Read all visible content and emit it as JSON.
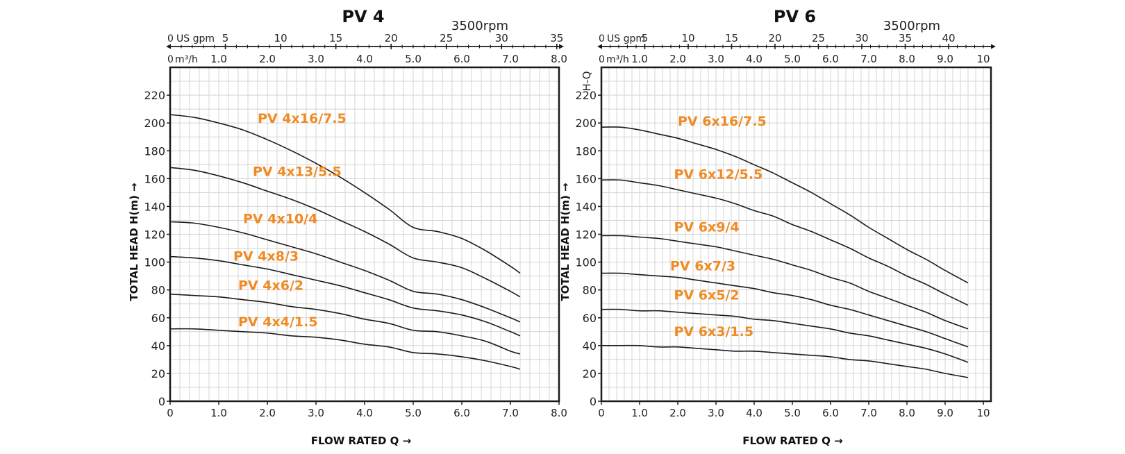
{
  "chart_data": [
    {
      "type": "line",
      "title": "PV 4",
      "speed_label": "3500rpm",
      "xlabel": "FLOW RATED Q →",
      "ylabel": "TOTAL HEAD H(m) →",
      "x_unit_label": "m³/h",
      "top_unit_label": "US gpm",
      "xlim": [
        0,
        8
      ],
      "ylim": [
        0,
        240
      ],
      "grid": true,
      "x_ticks": [
        0,
        1,
        2,
        3,
        4,
        5,
        6,
        7,
        8
      ],
      "x_tick_labels": [
        "0",
        "1.0",
        "2.0",
        "3.0",
        "4.0",
        "5.0",
        "6.0",
        "7.0",
        "8.0"
      ],
      "y_ticks": [
        0,
        20,
        40,
        60,
        80,
        100,
        120,
        140,
        160,
        180,
        200,
        220
      ],
      "y_tick_labels": [
        "0",
        "20",
        "40",
        "60",
        "80",
        "100",
        "120",
        "140",
        "160",
        "180",
        "200",
        "220"
      ],
      "gpm_ticks": [
        0,
        5,
        10,
        15,
        20,
        25,
        30,
        35
      ],
      "gpm_tick_labels": [
        "0",
        "5",
        "10",
        "15",
        "20",
        "25",
        "30",
        "35"
      ],
      "series": [
        {
          "name": "PV 4x16/7.5",
          "label_at": [
            1.8,
            200
          ],
          "x": [
            0,
            0.5,
            1,
            1.5,
            2,
            2.5,
            3,
            3.5,
            4,
            4.5,
            5,
            5.5,
            6,
            6.5,
            7,
            7.2
          ],
          "y": [
            206,
            204,
            200,
            195,
            188,
            180,
            171,
            161,
            150,
            138,
            125,
            122,
            117,
            108,
            97,
            92
          ]
        },
        {
          "name": "PV 4x13/5.5",
          "label_at": [
            1.7,
            162
          ],
          "x": [
            0,
            0.5,
            1,
            1.5,
            2,
            2.5,
            3,
            3.5,
            4,
            4.5,
            5,
            5.5,
            6,
            6.5,
            7,
            7.2
          ],
          "y": [
            168,
            166,
            162,
            157,
            151,
            145,
            138,
            130,
            122,
            113,
            103,
            100,
            96,
            88,
            79,
            75
          ]
        },
        {
          "name": "PV 4x10/4",
          "label_at": [
            1.5,
            128
          ],
          "x": [
            0,
            0.5,
            1,
            1.5,
            2,
            2.5,
            3,
            3.5,
            4,
            4.5,
            5,
            5.5,
            6,
            6.5,
            7,
            7.2
          ],
          "y": [
            129,
            128,
            125,
            121,
            116,
            111,
            106,
            100,
            94,
            87,
            79,
            77,
            73,
            67,
            60,
            57
          ]
        },
        {
          "name": "PV 4x8/3",
          "label_at": [
            1.3,
            101
          ],
          "x": [
            0,
            0.5,
            1,
            1.5,
            2,
            2.5,
            3,
            3.5,
            4,
            4.5,
            5,
            5.5,
            6,
            6.5,
            7,
            7.2
          ],
          "y": [
            104,
            103,
            101,
            98,
            95,
            91,
            87,
            83,
            78,
            73,
            67,
            65,
            62,
            57,
            50,
            47
          ]
        },
        {
          "name": "PV 4x6/2",
          "label_at": [
            1.4,
            80
          ],
          "x": [
            0,
            0.5,
            1,
            1.5,
            2,
            2.5,
            3,
            3.5,
            4,
            4.5,
            5,
            5.5,
            6,
            6.5,
            7,
            7.2
          ],
          "y": [
            77,
            76,
            75,
            73,
            71,
            68,
            66,
            63,
            59,
            56,
            51,
            50,
            47,
            43,
            36,
            34
          ]
        },
        {
          "name": "PV 4x4/1.5",
          "label_at": [
            1.4,
            54
          ],
          "x": [
            0,
            0.5,
            1,
            1.5,
            2,
            2.5,
            3,
            3.5,
            4,
            4.5,
            5,
            5.5,
            6,
            6.5,
            7,
            7.2
          ],
          "y": [
            52,
            52,
            51,
            50,
            49,
            47,
            46,
            44,
            41,
            39,
            35,
            34,
            32,
            29,
            25,
            23
          ]
        }
      ]
    },
    {
      "type": "line",
      "title": "PV 6",
      "speed_label": "3500rpm",
      "hq_label": "H-Q",
      "xlabel": "FLOW RATED Q →",
      "ylabel": "TOTAL HEAD H(m) →",
      "x_unit_label": "m³/h",
      "top_unit_label": "US gpm",
      "xlim": [
        0,
        10.2
      ],
      "ylim": [
        0,
        240
      ],
      "grid": true,
      "x_ticks": [
        0,
        1,
        2,
        3,
        4,
        5,
        6,
        7,
        8,
        9,
        10
      ],
      "x_tick_labels": [
        "0",
        "1.0",
        "2.0",
        "3.0",
        "4.0",
        "5.0",
        "6.0",
        "7.0",
        "8.0",
        "9.0",
        "10"
      ],
      "y_ticks": [
        0,
        20,
        40,
        60,
        80,
        100,
        120,
        140,
        160,
        180,
        200,
        220
      ],
      "y_tick_labels": [
        "0",
        "20",
        "40",
        "60",
        "80",
        "100",
        "120",
        "140",
        "160",
        "180",
        "200",
        "220"
      ],
      "gpm_ticks": [
        0,
        5,
        10,
        15,
        20,
        25,
        30,
        35,
        40
      ],
      "gpm_tick_labels": [
        "0",
        "5",
        "10",
        "15",
        "20",
        "25",
        "30",
        "35",
        "40"
      ],
      "series": [
        {
          "name": "PV 6x16/7.5",
          "label_at": [
            2.0,
            198
          ],
          "x": [
            0,
            0.5,
            1,
            1.5,
            2,
            2.5,
            3,
            3.5,
            4,
            4.5,
            5,
            5.5,
            6,
            6.5,
            7,
            7.5,
            8,
            8.5,
            9,
            9.6
          ],
          "y": [
            197,
            197,
            195,
            192,
            189,
            185,
            181,
            176,
            170,
            164,
            157,
            150,
            142,
            134,
            125,
            117,
            109,
            102,
            94,
            85
          ]
        },
        {
          "name": "PV 6x12/5.5",
          "label_at": [
            1.9,
            160
          ],
          "x": [
            0,
            0.5,
            1,
            1.5,
            2,
            2.5,
            3,
            3.5,
            4,
            4.5,
            5,
            5.5,
            6,
            6.5,
            7,
            7.5,
            8,
            8.5,
            9,
            9.6
          ],
          "y": [
            159,
            159,
            157,
            155,
            152,
            149,
            146,
            142,
            137,
            133,
            127,
            122,
            116,
            110,
            103,
            97,
            90,
            84,
            77,
            69
          ]
        },
        {
          "name": "PV 6x9/4",
          "label_at": [
            1.9,
            122
          ],
          "x": [
            0,
            0.5,
            1,
            1.5,
            2,
            2.5,
            3,
            3.5,
            4,
            4.5,
            5,
            5.5,
            6,
            6.5,
            7,
            7.5,
            8,
            8.5,
            9,
            9.6
          ],
          "y": [
            119,
            119,
            118,
            117,
            115,
            113,
            111,
            108,
            105,
            102,
            98,
            94,
            89,
            85,
            79,
            74,
            69,
            64,
            58,
            52
          ]
        },
        {
          "name": "PV 6x7/3",
          "label_at": [
            1.8,
            94
          ],
          "x": [
            0,
            0.5,
            1,
            1.5,
            2,
            2.5,
            3,
            3.5,
            4,
            4.5,
            5,
            5.5,
            6,
            6.5,
            7,
            7.5,
            8,
            8.5,
            9,
            9.6
          ],
          "y": [
            92,
            92,
            91,
            90,
            89,
            87,
            85,
            83,
            81,
            78,
            76,
            73,
            69,
            66,
            62,
            58,
            54,
            50,
            45,
            39
          ]
        },
        {
          "name": "PV 6x5/2",
          "label_at": [
            1.9,
            73
          ],
          "x": [
            0,
            0.5,
            1,
            1.5,
            2,
            2.5,
            3,
            3.5,
            4,
            4.5,
            5,
            5.5,
            6,
            6.5,
            7,
            7.5,
            8,
            8.5,
            9,
            9.6
          ],
          "y": [
            66,
            66,
            65,
            65,
            64,
            63,
            62,
            61,
            59,
            58,
            56,
            54,
            52,
            49,
            47,
            44,
            41,
            38,
            34,
            28
          ]
        },
        {
          "name": "PV 6x3/1.5",
          "label_at": [
            1.9,
            47
          ],
          "x": [
            0,
            0.5,
            1,
            1.5,
            2,
            2.5,
            3,
            3.5,
            4,
            4.5,
            5,
            5.5,
            6,
            6.5,
            7,
            7.5,
            8,
            8.5,
            9,
            9.6
          ],
          "y": [
            40,
            40,
            40,
            39,
            39,
            38,
            37,
            36,
            36,
            35,
            34,
            33,
            32,
            30,
            29,
            27,
            25,
            23,
            20,
            17
          ]
        }
      ]
    }
  ],
  "colors": {
    "curve": "#1a1a1a",
    "label": "#f08a24",
    "grid": "#d4d4d4",
    "axis": "#1a1a1a"
  }
}
